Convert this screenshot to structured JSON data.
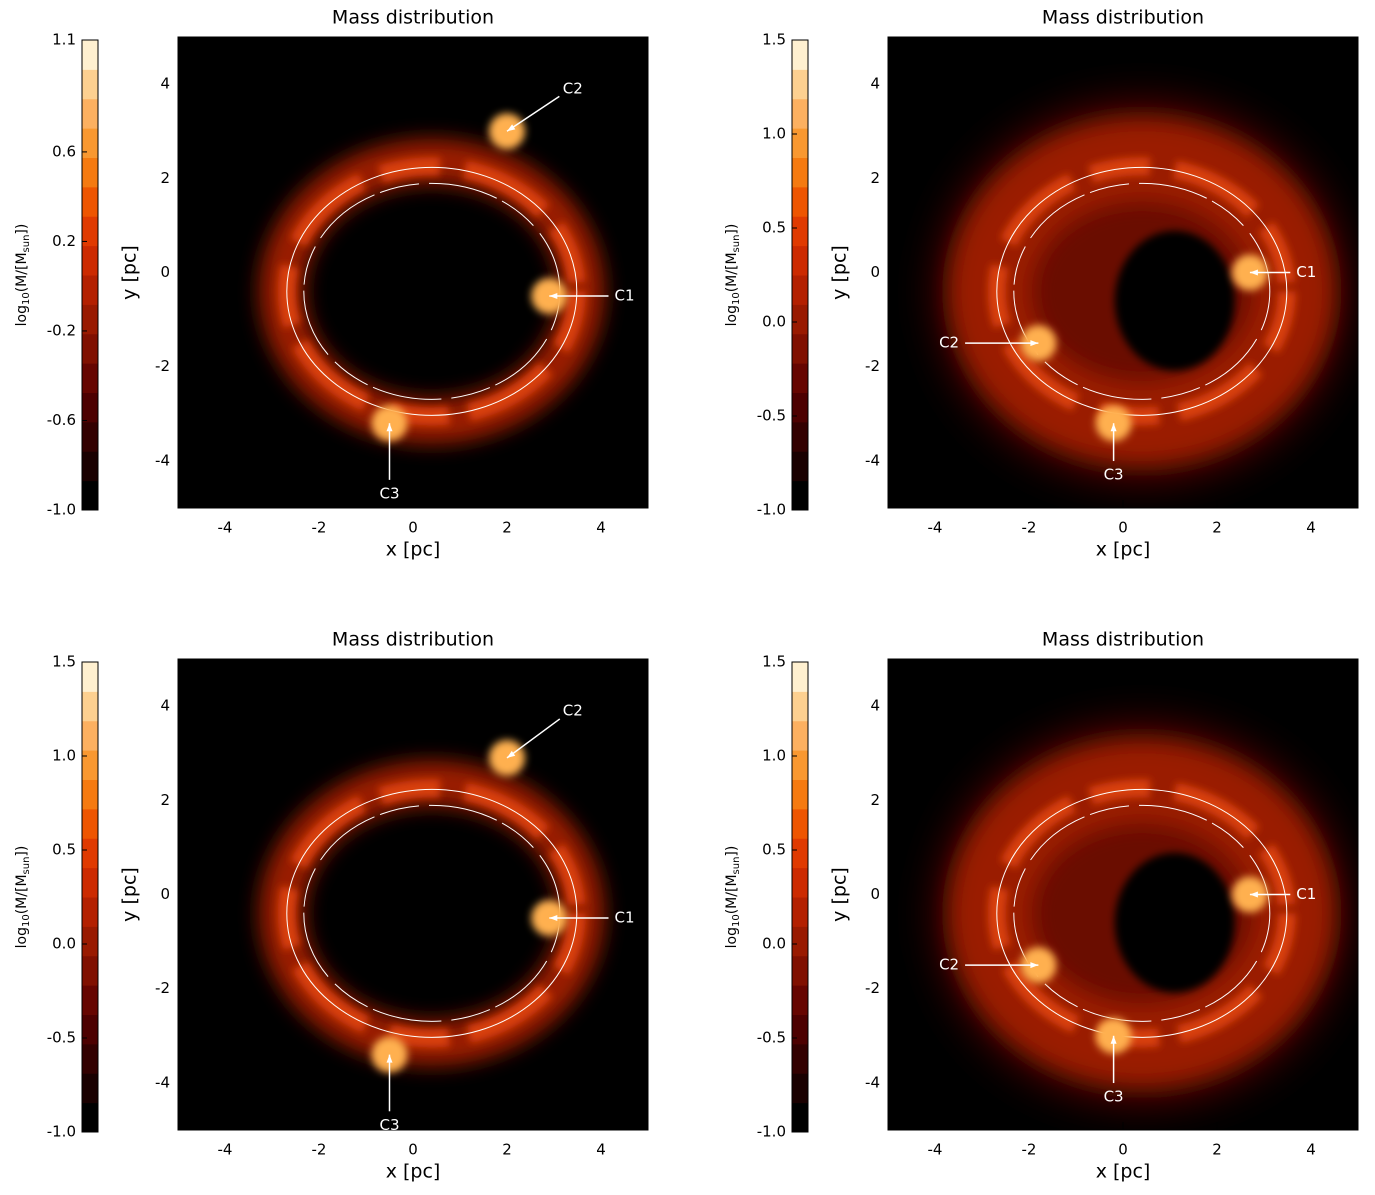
{
  "chart_data": [
    {
      "type": "image",
      "title": "Mass distribution",
      "xlabel": "x [pc]",
      "ylabel": "y [pc]",
      "xlim": [
        -5,
        5
      ],
      "ylim": [
        -5,
        5
      ],
      "xticks": [
        -4,
        -2,
        0,
        2,
        4
      ],
      "yticks": [
        -4,
        -2,
        0,
        2,
        4
      ],
      "colorbar": {
        "label": [
          "log",
          "10",
          "(M/[M",
          "sun",
          "])"
        ],
        "lim": [
          -1.0,
          1.1
        ],
        "ticks": [
          {
            "value": -1.0,
            "label": "-1.0"
          },
          -0.6,
          -0.2,
          0.2,
          0.6,
          1.1
        ]
      },
      "annotations": [
        {
          "text": "C2",
          "xy": [
            2,
            3
          ],
          "xytext": [
            3.4,
            3.9
          ]
        },
        {
          "text": "C1",
          "xy": [
            2.9,
            -0.5
          ],
          "xytext": [
            4.5,
            -0.5
          ]
        },
        {
          "text": "C3",
          "xy": [
            -0.5,
            -3.2
          ],
          "xytext": [
            -0.5,
            -4.7
          ]
        }
      ]
    },
    {
      "type": "image",
      "title": "Mass distribution",
      "xlabel": "x [pc]",
      "ylabel": "y [pc]",
      "xlim": [
        -5,
        5
      ],
      "ylim": [
        -5,
        5
      ],
      "xticks": [
        -4,
        -2,
        0,
        2,
        4
      ],
      "yticks": [
        -4,
        -2,
        0,
        2,
        4
      ],
      "colorbar": {
        "label": [
          "log",
          "10",
          "(M/[M",
          "sun",
          "])"
        ],
        "lim": [
          -1.0,
          1.5
        ],
        "ticks": [
          {
            "value": -1.0,
            "label": "-1.0"
          },
          -0.5,
          {
            "value": 0.0,
            "label": "0.0"
          },
          0.5,
          {
            "value": 1.0,
            "label": "1.0"
          },
          1.5
        ]
      },
      "annotations": [
        {
          "text": "C1",
          "xy": [
            2.7,
            0
          ],
          "xytext": [
            3.9,
            0
          ]
        },
        {
          "text": "C2",
          "xy": [
            -1.8,
            -1.5
          ],
          "xytext": [
            -3.7,
            -1.5
          ]
        },
        {
          "text": "C3",
          "xy": [
            -0.2,
            -3.2
          ],
          "xytext": [
            -0.2,
            -4.3
          ]
        }
      ]
    },
    {
      "type": "image",
      "title": "Mass distribution",
      "xlabel": "x [pc]",
      "ylabel": "y [pc]",
      "xlim": [
        -5,
        5
      ],
      "ylim": [
        -5,
        5
      ],
      "xticks": [
        -4,
        -2,
        0,
        2,
        4
      ],
      "yticks": [
        -4,
        -2,
        0,
        2,
        4
      ],
      "colorbar": {
        "label": [
          "log",
          "10",
          "(M/[M",
          "sun",
          "])"
        ],
        "lim": [
          -1.0,
          1.5
        ],
        "ticks": [
          {
            "value": -1.0,
            "label": "-1.0"
          },
          -0.5,
          {
            "value": 0.0,
            "label": "0.0"
          },
          0.5,
          {
            "value": 1.0,
            "label": "1.0"
          },
          1.5
        ]
      },
      "annotations": [
        {
          "text": "C2",
          "xy": [
            2,
            2.9
          ],
          "xytext": [
            3.4,
            3.9
          ]
        },
        {
          "text": "C1",
          "xy": [
            2.9,
            -0.5
          ],
          "xytext": [
            4.5,
            -0.5
          ]
        },
        {
          "text": "C3",
          "xy": [
            -0.5,
            -3.4
          ],
          "xytext": [
            -0.5,
            -4.9
          ]
        }
      ]
    },
    {
      "type": "image",
      "title": "Mass distribution",
      "xlabel": "x [pc]",
      "ylabel": "y [pc]",
      "xlim": [
        -5,
        5
      ],
      "ylim": [
        -5,
        5
      ],
      "xticks": [
        -4,
        -2,
        0,
        2,
        4
      ],
      "yticks": [
        -4,
        -2,
        0,
        2,
        4
      ],
      "colorbar": {
        "label": [
          "log",
          "10",
          "(M/[M",
          "sun",
          "])"
        ],
        "lim": [
          -1.0,
          1.5
        ],
        "ticks": [
          {
            "value": -1.0,
            "label": "-1.0"
          },
          -0.5,
          {
            "value": 0.0,
            "label": "0.0"
          },
          0.5,
          {
            "value": 1.0,
            "label": "1.0"
          },
          1.5
        ]
      },
      "annotations": [
        {
          "text": "C1",
          "xy": [
            2.7,
            0
          ],
          "xytext": [
            3.9,
            0
          ]
        },
        {
          "text": "C2",
          "xy": [
            -1.8,
            -1.5
          ],
          "xytext": [
            -3.7,
            -1.5
          ]
        },
        {
          "text": "C3",
          "xy": [
            -0.2,
            -3.0
          ],
          "xytext": [
            -0.2,
            -4.3
          ]
        }
      ]
    }
  ]
}
